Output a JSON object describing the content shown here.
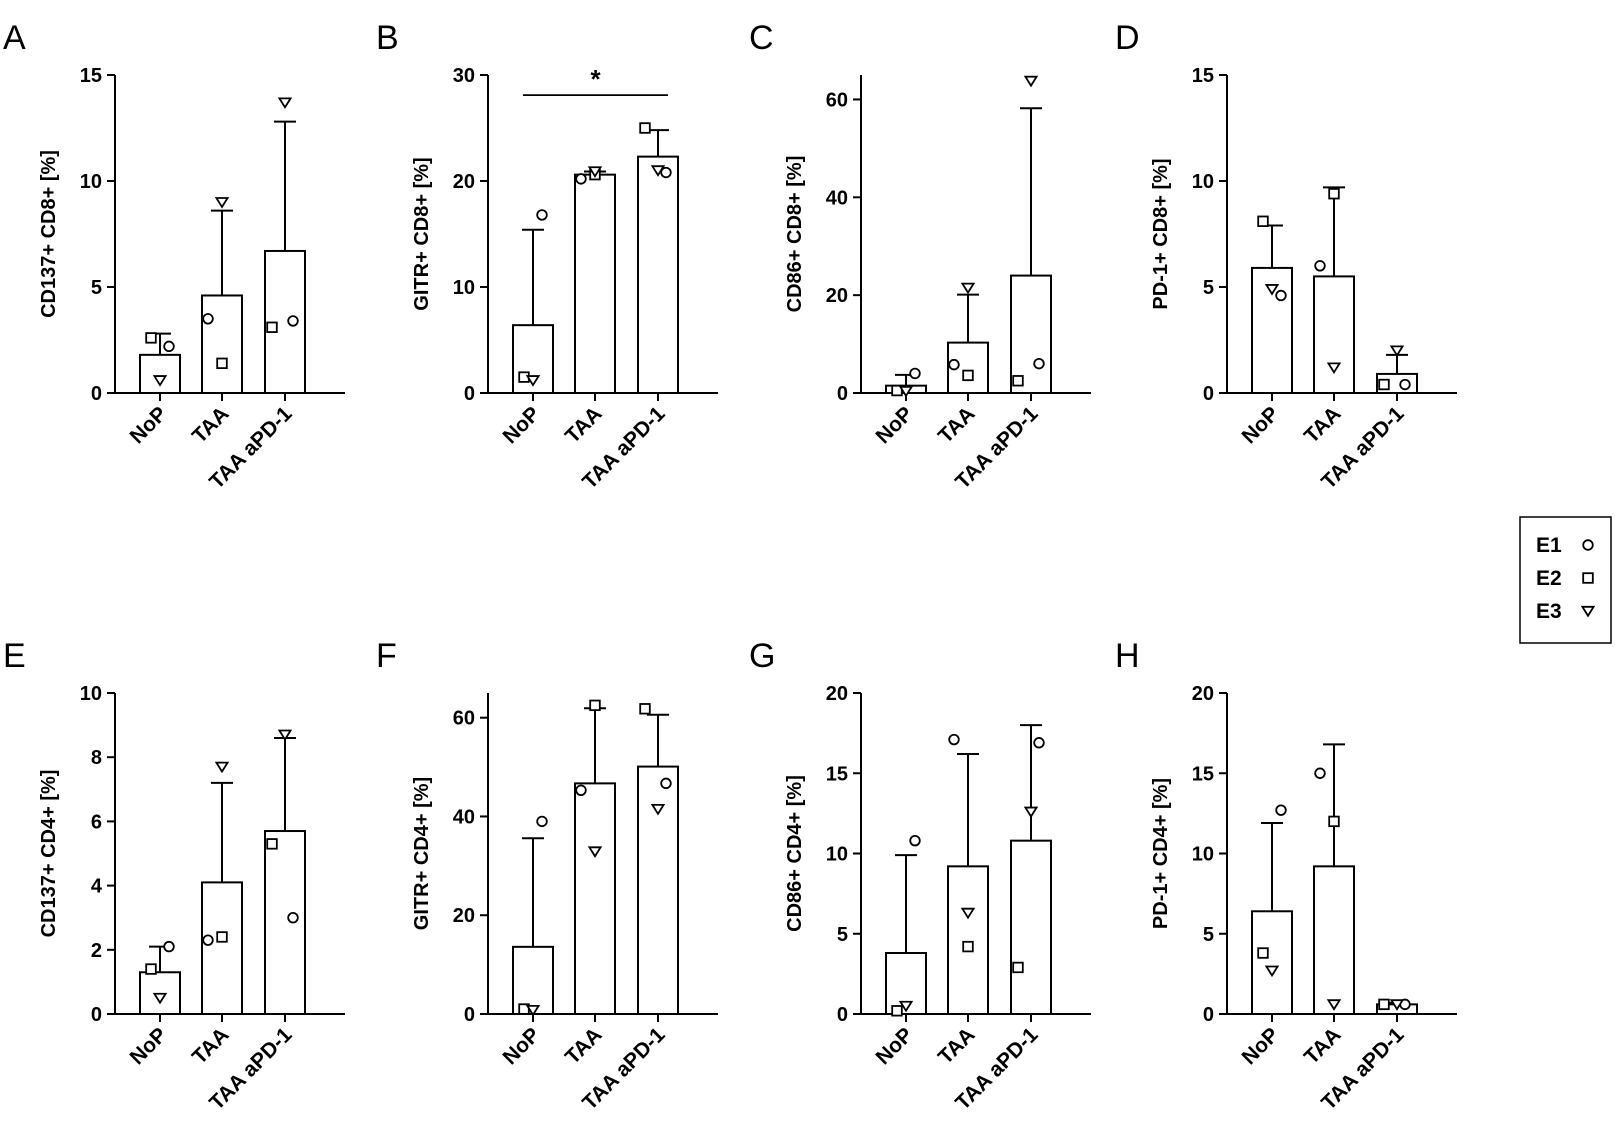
{
  "chart_data": [
    {
      "type": "bar",
      "panel": "A",
      "ylabel": "CD137+ CD8+ [%]",
      "ylim": [
        0,
        15
      ],
      "yticks": [
        0,
        5,
        10,
        15
      ],
      "categories": [
        "NoP",
        "TAA",
        "TAA aPD-1"
      ],
      "values": [
        1.8,
        4.6,
        6.7
      ],
      "sd": [
        1.0,
        4.0,
        6.1
      ],
      "points": {
        "E1": [
          2.2,
          3.5,
          3.4
        ],
        "E2": [
          2.6,
          1.4,
          3.1
        ],
        "E3": [
          0.6,
          9.0,
          13.7
        ]
      }
    },
    {
      "type": "bar",
      "panel": "B",
      "ylabel": "GITR+ CD8+ [%]",
      "ylim": [
        0,
        30
      ],
      "yticks": [
        0,
        10,
        20,
        30
      ],
      "categories": [
        "NoP",
        "TAA",
        "TAA aPD-1"
      ],
      "values": [
        6.4,
        20.6,
        22.3
      ],
      "sd": [
        9.0,
        0.3,
        2.5
      ],
      "points": {
        "E1": [
          16.8,
          20.2,
          20.8
        ],
        "E2": [
          1.5,
          20.6,
          25.0
        ],
        "E3": [
          1.2,
          20.9,
          21.0
        ]
      },
      "significance": {
        "from": 0,
        "to": 2,
        "label": "*",
        "y": 28.1
      }
    },
    {
      "type": "bar",
      "panel": "C",
      "ylabel": "CD86+ CD8+ [%]",
      "ylim": [
        0,
        65
      ],
      "yticks": [
        0,
        20,
        40,
        60
      ],
      "categories": [
        "NoP",
        "TAA",
        "TAA aPD-1"
      ],
      "values": [
        1.5,
        10.3,
        24.0
      ],
      "sd": [
        2.2,
        9.8,
        34.2
      ],
      "points": {
        "E1": [
          4.0,
          5.8,
          6.0
        ],
        "E2": [
          0.5,
          3.6,
          2.5
        ],
        "E3": [
          0.4,
          21.5,
          63.8
        ]
      }
    },
    {
      "type": "bar",
      "panel": "D",
      "ylabel": "PD-1+ CD8+ [%]",
      "ylim": [
        0,
        15
      ],
      "yticks": [
        0,
        5,
        10,
        15
      ],
      "categories": [
        "NoP",
        "TAA",
        "TAA aPD-1"
      ],
      "values": [
        5.9,
        5.5,
        0.9
      ],
      "sd": [
        2.0,
        4.2,
        0.9
      ],
      "points": {
        "E1": [
          4.6,
          6.0,
          0.4
        ],
        "E2": [
          8.1,
          9.4,
          0.4
        ],
        "E3": [
          4.9,
          1.2,
          2.0
        ]
      }
    },
    {
      "type": "bar",
      "panel": "E",
      "ylabel": "CD137+ CD4+ [%]",
      "ylim": [
        0,
        10
      ],
      "yticks": [
        0,
        2,
        4,
        6,
        8,
        10
      ],
      "categories": [
        "NoP",
        "TAA",
        "TAA aPD-1"
      ],
      "values": [
        1.3,
        4.1,
        5.7
      ],
      "sd": [
        0.8,
        3.1,
        2.9
      ],
      "points": {
        "E1": [
          2.1,
          2.3,
          3.0
        ],
        "E2": [
          1.4,
          2.4,
          5.3
        ],
        "E3": [
          0.5,
          7.7,
          8.7
        ]
      }
    },
    {
      "type": "bar",
      "panel": "F",
      "ylabel": "GITR+ CD4+ [%]",
      "ylim": [
        0,
        65
      ],
      "yticks": [
        0,
        20,
        40,
        60
      ],
      "categories": [
        "NoP",
        "TAA",
        "TAA aPD-1"
      ],
      "values": [
        13.6,
        46.7,
        50.1
      ],
      "sd": [
        22.0,
        15.2,
        10.5
      ],
      "points": {
        "E1": [
          39.0,
          45.3,
          46.7
        ],
        "E2": [
          1.0,
          62.5,
          61.8
        ],
        "E3": [
          0.8,
          32.9,
          41.5
        ]
      }
    },
    {
      "type": "bar",
      "panel": "G",
      "ylabel": "CD86+ CD4+ [%]",
      "ylim": [
        0,
        20
      ],
      "yticks": [
        0,
        5,
        10,
        15,
        20
      ],
      "categories": [
        "NoP",
        "TAA",
        "TAA aPD-1"
      ],
      "values": [
        3.8,
        9.2,
        10.8
      ],
      "sd": [
        6.1,
        7.0,
        7.2
      ],
      "points": {
        "E1": [
          10.8,
          17.1,
          16.9
        ],
        "E2": [
          0.2,
          4.2,
          2.9
        ],
        "E3": [
          0.5,
          6.3,
          12.6
        ]
      }
    },
    {
      "type": "bar",
      "panel": "H",
      "ylabel": "PD-1+ CD4+ [%]",
      "ylim": [
        0,
        20
      ],
      "yticks": [
        0,
        5,
        10,
        15,
        20
      ],
      "categories": [
        "NoP",
        "TAA",
        "TAA aPD-1"
      ],
      "values": [
        6.4,
        9.2,
        0.6
      ],
      "sd": [
        5.5,
        7.6,
        0.1
      ],
      "points": {
        "E1": [
          12.7,
          15.0,
          0.6
        ],
        "E2": [
          3.8,
          12.0,
          0.6
        ],
        "E3": [
          2.7,
          0.6,
          0.6
        ]
      }
    }
  ],
  "legend": [
    {
      "label": "E1",
      "marker": "circle"
    },
    {
      "label": "E2",
      "marker": "square"
    },
    {
      "label": "E3",
      "marker": "triangle"
    }
  ],
  "colors": {
    "ink": "#000000",
    "bar_fill": "#ffffff",
    "marker_fill": "#ffffff"
  }
}
